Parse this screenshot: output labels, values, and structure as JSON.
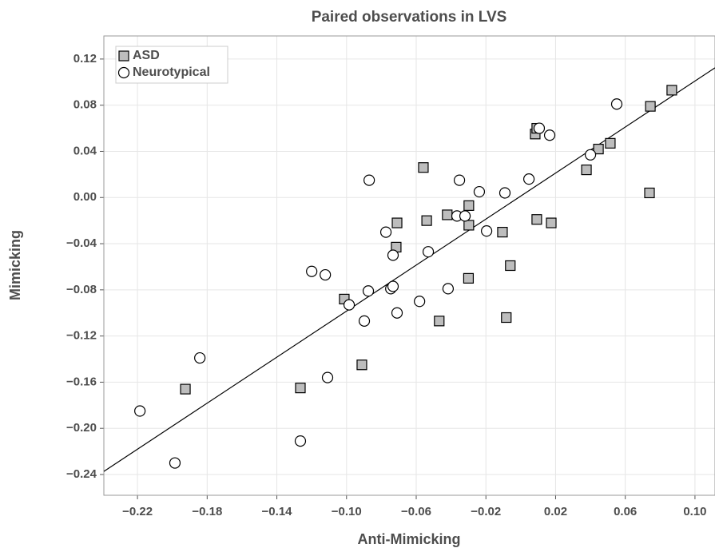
{
  "chart_data": {
    "type": "scatter",
    "title": "Paired observations in LVS",
    "x_label": "Anti-Mimicking",
    "y_label": "Mimicking",
    "xlim": [
      -0.2393,
      0.1115
    ],
    "ylim": [
      -0.258,
      0.14
    ],
    "xticks": [
      {
        "value": -0.22,
        "label": "−0.22"
      },
      {
        "value": -0.18,
        "label": "−0.18"
      },
      {
        "value": -0.14,
        "label": "−0.14"
      },
      {
        "value": -0.1,
        "label": "−0.10"
      },
      {
        "value": -0.06,
        "label": "−0.06"
      },
      {
        "value": -0.02,
        "label": "−0.02"
      },
      0.02,
      0.06,
      {
        "value": 0.1,
        "label": "0.10"
      }
    ],
    "yticks": [
      0.12,
      0.08,
      0.04,
      {
        "value": 0,
        "label": "0.00"
      },
      {
        "value": -0.04,
        "label": "−0.04"
      },
      {
        "value": -0.08,
        "label": "−0.08"
      },
      {
        "value": -0.12,
        "label": "−0.12"
      },
      {
        "value": -0.16,
        "label": "−0.16"
      },
      {
        "value": -0.2,
        "label": "−0.20"
      },
      {
        "value": -0.24,
        "label": "−0.24"
      }
    ],
    "grid": true,
    "legend": "top-left",
    "series": [
      {
        "name": "ASD",
        "marker": "square",
        "color": "#bdbdbd",
        "x": [
          -0.1925,
          -0.1265,
          -0.0912,
          -0.1013,
          -0.071,
          -0.0715,
          -0.0559,
          -0.054,
          -0.0468,
          -0.0422,
          -0.0298,
          -0.0298,
          -0.03,
          -0.0105,
          -0.0083,
          -0.006,
          0.0083,
          0.0092,
          0.0092,
          0.0175,
          0.0377,
          0.0446,
          0.0514,
          0.0739,
          0.0744,
          0.0867
        ],
        "values": [
          -0.166,
          -0.165,
          -0.145,
          -0.088,
          -0.022,
          -0.043,
          0.026,
          -0.02,
          -0.107,
          -0.015,
          -0.007,
          -0.024,
          -0.07,
          -0.03,
          -0.104,
          -0.059,
          0.055,
          0.06,
          -0.019,
          -0.022,
          0.024,
          0.042,
          0.047,
          0.004,
          0.079,
          0.093
        ]
      },
      {
        "name": "Neurotypical",
        "marker": "circle",
        "color": "#ffffff",
        "x": [
          -0.2186,
          -0.1985,
          -0.1842,
          -0.1265,
          -0.12,
          -0.1122,
          -0.1109,
          -0.0985,
          -0.0898,
          -0.0875,
          -0.087,
          -0.0774,
          -0.0746,
          -0.0733,
          -0.0733,
          -0.071,
          -0.0581,
          -0.0531,
          -0.0417,
          -0.0366,
          -0.0352,
          -0.032,
          -0.0238,
          -0.0196,
          -0.0091,
          0.0047,
          0.0106,
          0.0166,
          0.04,
          0.0551
        ],
        "values": [
          -0.185,
          -0.23,
          -0.139,
          -0.211,
          -0.064,
          -0.067,
          -0.156,
          -0.093,
          -0.107,
          -0.081,
          0.015,
          -0.03,
          -0.079,
          -0.05,
          -0.077,
          -0.1,
          -0.09,
          -0.047,
          -0.079,
          -0.016,
          0.015,
          -0.016,
          0.005,
          -0.029,
          0.004,
          0.016,
          0.06,
          0.054,
          0.037,
          0.081
        ]
      }
    ],
    "fit_line": {
      "x": [
        -0.2393,
        0.1115
      ],
      "values": [
        -0.2373,
        0.1124
      ]
    }
  }
}
